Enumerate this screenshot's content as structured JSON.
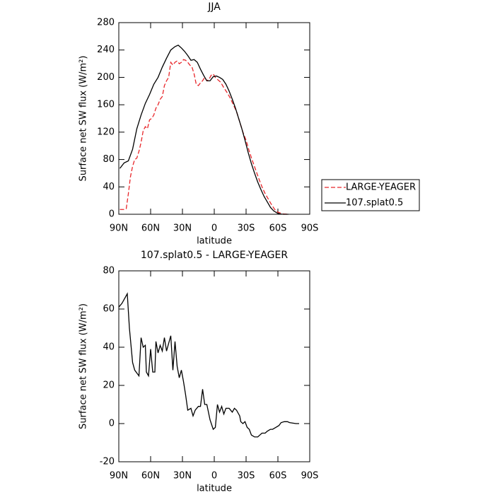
{
  "chart_data": [
    {
      "type": "line",
      "title": "JJA",
      "xlabel": "latitude",
      "ylabel": "Surface net SW flux (W/m²)",
      "xlim": [
        90,
        -90
      ],
      "ylim": [
        0,
        280
      ],
      "xticks": [
        {
          "value": 90,
          "label": "90N"
        },
        {
          "value": 60,
          "label": "60N"
        },
        {
          "value": 30,
          "label": "30N"
        },
        0,
        {
          "value": -30,
          "label": "30S"
        },
        {
          "value": -60,
          "label": "60S"
        },
        {
          "value": -90,
          "label": "90S"
        }
      ],
      "yticks": [
        0,
        40,
        80,
        120,
        160,
        200,
        240,
        280
      ],
      "legend": "right",
      "series": [
        {
          "name": "LARGE-YEAGER",
          "color": "#e8262a",
          "linestyle": "dashed",
          "x": [
            89,
            85,
            83,
            81,
            79,
            77,
            75,
            73,
            71,
            69,
            67,
            65,
            63,
            61,
            59,
            57,
            55,
            53,
            51,
            49,
            47,
            45,
            43,
            41,
            39,
            37,
            35,
            33,
            31,
            29,
            27,
            25,
            23,
            21,
            19,
            17,
            15,
            13,
            11,
            9,
            7,
            5,
            3,
            1,
            -1,
            -3,
            -6,
            -9,
            -12,
            -15,
            -18,
            -21,
            -24,
            -27,
            -30,
            -33,
            -36,
            -39,
            -42,
            -45,
            -48,
            -51,
            -54,
            -57,
            -60,
            -65,
            -69
          ],
          "values": [
            7,
            7,
            8,
            30,
            55,
            70,
            80,
            82,
            92,
            105,
            122,
            128,
            125,
            138,
            140,
            145,
            155,
            160,
            168,
            172,
            188,
            195,
            200,
            222,
            218,
            222,
            224,
            220,
            222,
            226,
            225,
            222,
            218,
            215,
            205,
            190,
            188,
            192,
            195,
            200,
            195,
            197,
            203,
            205,
            200,
            197,
            193,
            185,
            178,
            170,
            160,
            150,
            135,
            120,
            108,
            92,
            78,
            65,
            52,
            40,
            30,
            22,
            14,
            7,
            3,
            0.5,
            0
          ]
        },
        {
          "name": "107.splat0.5",
          "color": "#000000",
          "linestyle": "solid",
          "x": [
            89,
            85,
            81,
            77,
            73,
            69,
            65,
            61,
            57,
            53,
            49,
            45,
            41,
            37,
            34,
            31,
            28,
            25,
            22,
            19,
            16,
            13,
            10,
            7,
            4,
            1,
            -2,
            -5,
            -8,
            -11,
            -14,
            -17,
            -20,
            -23,
            -26,
            -29,
            -32,
            -35,
            -38,
            -41,
            -44,
            -47,
            -50,
            -53,
            -56,
            -59,
            -62,
            -65,
            -70
          ],
          "values": [
            67,
            75,
            78,
            95,
            125,
            145,
            162,
            175,
            190,
            200,
            215,
            228,
            240,
            245,
            247,
            243,
            238,
            232,
            225,
            226,
            222,
            212,
            203,
            195,
            195,
            201,
            202,
            200,
            197,
            190,
            180,
            168,
            155,
            140,
            125,
            108,
            90,
            74,
            60,
            47,
            36,
            26,
            18,
            10,
            5,
            2,
            0.5,
            0,
            0
          ]
        }
      ]
    },
    {
      "type": "line",
      "title": "107.splat0.5 - LARGE-YEAGER",
      "xlabel": "latitude",
      "ylabel": "Surface net SW flux (W/m²)",
      "xlim": [
        90,
        -90
      ],
      "ylim": [
        -20,
        80
      ],
      "xticks": [
        {
          "value": 90,
          "label": "90N"
        },
        {
          "value": 60,
          "label": "60N"
        },
        {
          "value": 30,
          "label": "30N"
        },
        0,
        {
          "value": -30,
          "label": "30S"
        },
        {
          "value": -60,
          "label": "60S"
        },
        {
          "value": -90,
          "label": "90S"
        }
      ],
      "yticks": [
        -20,
        0,
        20,
        40,
        60,
        80
      ],
      "series": [
        {
          "color": "#000000",
          "linestyle": "solid",
          "x": [
            90,
            87,
            82,
            80,
            77,
            75,
            71,
            69,
            67,
            65,
            64,
            62,
            60,
            58,
            56,
            55,
            53,
            51,
            49,
            47,
            45,
            43,
            41,
            39,
            37,
            35,
            33,
            31,
            29,
            27,
            25,
            22,
            20,
            18,
            15,
            13,
            11,
            9,
            7,
            4,
            1,
            -1,
            -3,
            -5,
            -7,
            -9,
            -11,
            -14,
            -17,
            -19,
            -21,
            -24,
            -25,
            -27,
            -29,
            -31,
            -33,
            -35,
            -38,
            -41,
            -43,
            -45,
            -48,
            -50,
            -53,
            -55,
            -58,
            -61,
            -63,
            -66,
            -69,
            -71,
            -77,
            -80
          ],
          "values": [
            61,
            63,
            68,
            50,
            32,
            28,
            25,
            45,
            40,
            41,
            27,
            25,
            39,
            27,
            27,
            43,
            37,
            41,
            38,
            45,
            38,
            42,
            46,
            28,
            43,
            30,
            24,
            28,
            22,
            15,
            7,
            8,
            4,
            7,
            9,
            9,
            18,
            10,
            10,
            2,
            -3,
            -2,
            10,
            6,
            9,
            5,
            8,
            8,
            6,
            8,
            7,
            4,
            1,
            0,
            1,
            -2,
            -3,
            -6,
            -7,
            -7,
            -6,
            -5,
            -5,
            -4,
            -3,
            -3,
            -2,
            -1,
            0.5,
            1,
            1,
            0.5,
            0,
            0
          ]
        }
      ]
    }
  ]
}
